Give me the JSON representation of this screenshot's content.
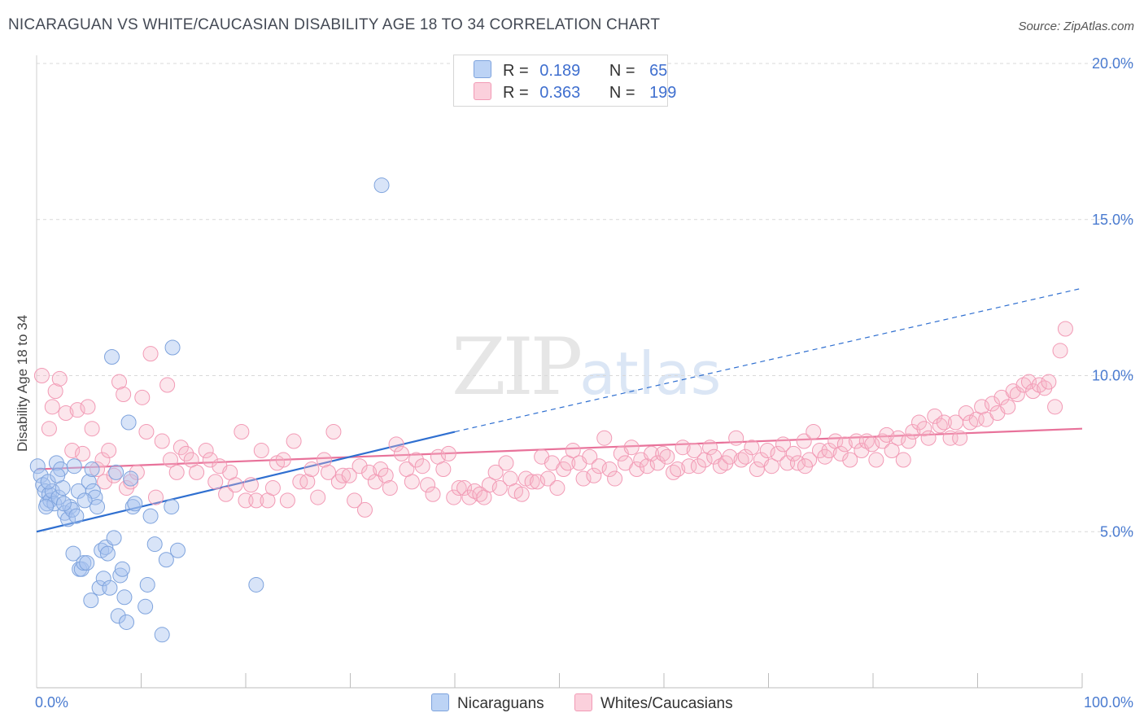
{
  "header": {
    "title": "NICARAGUAN VS WHITE/CAUCASIAN DISABILITY AGE 18 TO 34 CORRELATION CHART",
    "source": "Source: ZipAtlas.com"
  },
  "watermark": {
    "zip": "ZIP",
    "atlas": "atlas"
  },
  "legend": {
    "rows": [
      {
        "r_label": "R =",
        "r_value": "0.189",
        "n_label": "N =",
        "n_value": "65",
        "color": "#a9c4ef"
      },
      {
        "r_label": "R =",
        "r_value": "0.363",
        "n_label": "N =",
        "n_value": "199",
        "color": "#f7b6c8"
      }
    ]
  },
  "bottom_legend": {
    "items": [
      "Nicaraguans",
      "Whites/Caucasians"
    ]
  },
  "colors": {
    "blue_fill": "rgba(169,196,239,0.45)",
    "blue_stroke": "#7ea3dd",
    "blue_line": "#2f6fd0",
    "pink_fill": "rgba(247,182,200,0.35)",
    "pink_stroke": "#f29ab5",
    "pink_line": "#e8729a",
    "grid": "#d9d9d9",
    "tick_text": "#4a7bd0"
  },
  "chart_data": {
    "type": "scatter",
    "title": "NICARAGUAN VS WHITE/CAUCASIAN DISABILITY AGE 18 TO 34 CORRELATION CHART",
    "xlabel": "",
    "ylabel": "Disability Age 18 to 34",
    "xlim": [
      0,
      100
    ],
    "ylim": [
      0,
      20
    ],
    "x_tick_labels": [
      "0.0%",
      "100.0%"
    ],
    "y_ticks": [
      5,
      10,
      15,
      20
    ],
    "y_tick_labels": [
      "5.0%",
      "10.0%",
      "15.0%",
      "20.0%"
    ],
    "grid": true,
    "legend_position": "top-center",
    "series": [
      {
        "name": "Nicaraguans",
        "r": 0.189,
        "n": 65,
        "trend": {
          "x0": 0,
          "y0": 5.0,
          "x1": 40,
          "y1": 8.2,
          "dashed_to_x": 100,
          "dashed_to_y": 12.8
        },
        "points": [
          [
            0.1,
            7.1
          ],
          [
            0.4,
            6.8
          ],
          [
            0.6,
            6.5
          ],
          [
            0.8,
            6.3
          ],
          [
            1.0,
            5.9
          ],
          [
            1.2,
            6.2
          ],
          [
            1.3,
            6.0
          ],
          [
            1.5,
            6.3
          ],
          [
            1.7,
            5.9
          ],
          [
            1.9,
            7.2
          ],
          [
            2.1,
            6.1
          ],
          [
            2.3,
            7.0
          ],
          [
            2.5,
            6.4
          ],
          [
            2.7,
            5.6
          ],
          [
            3.0,
            5.4
          ],
          [
            3.2,
            5.8
          ],
          [
            3.4,
            5.7
          ],
          [
            3.6,
            7.1
          ],
          [
            3.8,
            5.5
          ],
          [
            4.0,
            6.3
          ],
          [
            3.5,
            4.3
          ],
          [
            4.1,
            3.8
          ],
          [
            4.3,
            3.8
          ],
          [
            4.5,
            4.0
          ],
          [
            4.8,
            4.0
          ],
          [
            5.0,
            6.6
          ],
          [
            5.2,
            2.8
          ],
          [
            5.4,
            6.3
          ],
          [
            5.6,
            6.1
          ],
          [
            5.8,
            5.8
          ],
          [
            6.0,
            3.2
          ],
          [
            6.2,
            4.4
          ],
          [
            6.4,
            3.5
          ],
          [
            6.6,
            4.5
          ],
          [
            6.8,
            4.3
          ],
          [
            7.0,
            3.2
          ],
          [
            7.2,
            10.6
          ],
          [
            7.4,
            4.8
          ],
          [
            7.6,
            6.9
          ],
          [
            7.8,
            2.3
          ],
          [
            8.0,
            3.6
          ],
          [
            8.2,
            3.8
          ],
          [
            8.4,
            2.9
          ],
          [
            8.6,
            2.1
          ],
          [
            8.8,
            8.5
          ],
          [
            9.0,
            6.7
          ],
          [
            9.2,
            5.8
          ],
          [
            9.4,
            5.9
          ],
          [
            10.4,
            2.6
          ],
          [
            10.6,
            3.3
          ],
          [
            10.9,
            5.5
          ],
          [
            11.3,
            4.6
          ],
          [
            12.0,
            1.7
          ],
          [
            12.4,
            4.1
          ],
          [
            12.9,
            5.8
          ],
          [
            13.0,
            10.9
          ],
          [
            13.5,
            4.4
          ],
          [
            21.0,
            3.3
          ],
          [
            33.0,
            16.1
          ],
          [
            1.1,
            6.6
          ],
          [
            2.0,
            6.8
          ],
          [
            2.6,
            5.9
          ],
          [
            4.6,
            6.0
          ],
          [
            5.3,
            7.0
          ],
          [
            0.9,
            5.8
          ]
        ]
      },
      {
        "name": "Whites/Caucasians",
        "r": 0.363,
        "n": 199,
        "trend": {
          "x0": 0,
          "y0": 7.0,
          "x1": 100,
          "y1": 8.3
        },
        "points": [
          [
            0.5,
            10.0
          ],
          [
            1.2,
            8.3
          ],
          [
            1.5,
            9.0
          ],
          [
            1.8,
            9.5
          ],
          [
            2.2,
            9.9
          ],
          [
            2.8,
            8.8
          ],
          [
            3.4,
            7.6
          ],
          [
            3.9,
            8.9
          ],
          [
            4.4,
            7.5
          ],
          [
            4.9,
            9.0
          ],
          [
            5.3,
            8.3
          ],
          [
            5.8,
            7.0
          ],
          [
            6.3,
            7.3
          ],
          [
            6.5,
            6.6
          ],
          [
            6.9,
            7.6
          ],
          [
            7.4,
            6.8
          ],
          [
            7.9,
            9.8
          ],
          [
            8.3,
            9.4
          ],
          [
            8.6,
            6.4
          ],
          [
            9.0,
            6.6
          ],
          [
            9.6,
            6.9
          ],
          [
            10.1,
            9.3
          ],
          [
            10.5,
            8.2
          ],
          [
            10.9,
            10.7
          ],
          [
            11.4,
            6.1
          ],
          [
            12.0,
            7.9
          ],
          [
            12.5,
            9.7
          ],
          [
            12.8,
            7.3
          ],
          [
            13.4,
            6.9
          ],
          [
            13.8,
            7.7
          ],
          [
            14.3,
            7.5
          ],
          [
            14.8,
            7.3
          ],
          [
            15.3,
            6.9
          ],
          [
            16.2,
            7.6
          ],
          [
            16.6,
            7.3
          ],
          [
            17.1,
            6.6
          ],
          [
            17.5,
            7.1
          ],
          [
            18.1,
            6.2
          ],
          [
            18.5,
            6.9
          ],
          [
            19.0,
            6.5
          ],
          [
            19.6,
            8.2
          ],
          [
            20.0,
            6.0
          ],
          [
            20.5,
            6.5
          ],
          [
            21.0,
            6.0
          ],
          [
            21.5,
            7.6
          ],
          [
            22.1,
            6.0
          ],
          [
            22.6,
            6.4
          ],
          [
            23.0,
            7.2
          ],
          [
            23.6,
            7.3
          ],
          [
            24.0,
            6.0
          ],
          [
            24.6,
            7.9
          ],
          [
            25.2,
            6.6
          ],
          [
            25.9,
            6.6
          ],
          [
            26.3,
            7.0
          ],
          [
            26.9,
            6.1
          ],
          [
            27.5,
            7.3
          ],
          [
            27.9,
            6.9
          ],
          [
            28.4,
            8.2
          ],
          [
            28.9,
            6.6
          ],
          [
            29.3,
            6.8
          ],
          [
            29.9,
            6.8
          ],
          [
            30.4,
            6.0
          ],
          [
            30.9,
            7.1
          ],
          [
            31.4,
            5.7
          ],
          [
            31.8,
            6.9
          ],
          [
            32.4,
            6.6
          ],
          [
            32.9,
            7.0
          ],
          [
            33.4,
            6.8
          ],
          [
            33.8,
            6.4
          ],
          [
            34.4,
            7.8
          ],
          [
            34.9,
            7.5
          ],
          [
            35.4,
            7.0
          ],
          [
            35.9,
            6.6
          ],
          [
            36.3,
            7.3
          ],
          [
            36.9,
            7.1
          ],
          [
            37.4,
            6.5
          ],
          [
            37.9,
            6.2
          ],
          [
            38.4,
            7.4
          ],
          [
            38.9,
            7.0
          ],
          [
            39.4,
            7.5
          ],
          [
            39.9,
            6.1
          ],
          [
            40.4,
            6.4
          ],
          [
            40.9,
            6.4
          ],
          [
            41.4,
            6.1
          ],
          [
            41.9,
            6.3
          ],
          [
            42.4,
            6.2
          ],
          [
            42.8,
            6.1
          ],
          [
            43.3,
            6.5
          ],
          [
            43.9,
            6.9
          ],
          [
            44.3,
            6.4
          ],
          [
            44.9,
            7.2
          ],
          [
            45.3,
            6.7
          ],
          [
            45.8,
            6.3
          ],
          [
            46.4,
            6.2
          ],
          [
            46.8,
            6.7
          ],
          [
            47.4,
            6.6
          ],
          [
            47.9,
            6.6
          ],
          [
            48.3,
            7.4
          ],
          [
            48.9,
            6.7
          ],
          [
            49.3,
            7.2
          ],
          [
            49.8,
            6.4
          ],
          [
            50.4,
            7.0
          ],
          [
            50.8,
            7.2
          ],
          [
            51.3,
            7.6
          ],
          [
            51.9,
            7.2
          ],
          [
            52.3,
            6.7
          ],
          [
            52.9,
            7.4
          ],
          [
            53.3,
            6.8
          ],
          [
            53.8,
            7.1
          ],
          [
            54.3,
            8.0
          ],
          [
            54.8,
            7.0
          ],
          [
            55.3,
            6.7
          ],
          [
            55.9,
            7.5
          ],
          [
            56.3,
            7.2
          ],
          [
            56.9,
            7.7
          ],
          [
            57.4,
            7.0
          ],
          [
            57.8,
            7.3
          ],
          [
            58.4,
            7.1
          ],
          [
            58.8,
            7.5
          ],
          [
            59.4,
            7.2
          ],
          [
            59.9,
            7.5
          ],
          [
            60.3,
            7.4
          ],
          [
            60.9,
            6.9
          ],
          [
            61.3,
            7.0
          ],
          [
            61.8,
            7.7
          ],
          [
            62.4,
            7.1
          ],
          [
            62.9,
            7.6
          ],
          [
            63.3,
            7.1
          ],
          [
            63.9,
            7.3
          ],
          [
            64.4,
            7.7
          ],
          [
            64.8,
            7.4
          ],
          [
            65.4,
            7.1
          ],
          [
            65.9,
            7.2
          ],
          [
            66.3,
            7.4
          ],
          [
            66.9,
            8.0
          ],
          [
            67.4,
            7.3
          ],
          [
            67.8,
            7.4
          ],
          [
            68.4,
            7.7
          ],
          [
            68.9,
            7.0
          ],
          [
            69.3,
            7.3
          ],
          [
            69.9,
            7.6
          ],
          [
            70.3,
            7.1
          ],
          [
            70.9,
            7.5
          ],
          [
            71.4,
            7.8
          ],
          [
            71.8,
            7.2
          ],
          [
            72.4,
            7.5
          ],
          [
            72.8,
            7.2
          ],
          [
            73.4,
            7.9
          ],
          [
            73.9,
            7.3
          ],
          [
            74.3,
            8.2
          ],
          [
            74.9,
            7.6
          ],
          [
            75.4,
            7.4
          ],
          [
            75.8,
            7.6
          ],
          [
            76.4,
            7.9
          ],
          [
            76.9,
            7.5
          ],
          [
            77.3,
            7.8
          ],
          [
            77.8,
            7.3
          ],
          [
            78.4,
            7.9
          ],
          [
            78.9,
            7.6
          ],
          [
            79.4,
            7.9
          ],
          [
            79.9,
            7.8
          ],
          [
            80.3,
            7.3
          ],
          [
            80.9,
            7.9
          ],
          [
            81.3,
            8.1
          ],
          [
            81.8,
            7.6
          ],
          [
            82.4,
            8.0
          ],
          [
            82.9,
            7.3
          ],
          [
            83.4,
            7.9
          ],
          [
            83.8,
            8.2
          ],
          [
            84.4,
            8.5
          ],
          [
            84.9,
            8.3
          ],
          [
            85.3,
            8.0
          ],
          [
            85.9,
            8.7
          ],
          [
            86.4,
            8.4
          ],
          [
            86.8,
            8.5
          ],
          [
            87.4,
            8.0
          ],
          [
            87.9,
            8.5
          ],
          [
            88.3,
            8.0
          ],
          [
            88.9,
            8.8
          ],
          [
            89.3,
            8.5
          ],
          [
            89.9,
            8.6
          ],
          [
            90.4,
            9.0
          ],
          [
            90.8,
            8.6
          ],
          [
            91.4,
            9.1
          ],
          [
            91.9,
            8.8
          ],
          [
            92.3,
            9.3
          ],
          [
            92.9,
            9.0
          ],
          [
            93.4,
            9.5
          ],
          [
            93.8,
            9.4
          ],
          [
            94.4,
            9.7
          ],
          [
            94.9,
            9.8
          ],
          [
            95.3,
            9.5
          ],
          [
            95.9,
            9.7
          ],
          [
            96.4,
            9.6
          ],
          [
            96.8,
            9.8
          ],
          [
            97.4,
            9.0
          ],
          [
            97.9,
            10.8
          ],
          [
            98.4,
            11.5
          ],
          [
            73.5,
            7.1
          ]
        ]
      }
    ]
  }
}
